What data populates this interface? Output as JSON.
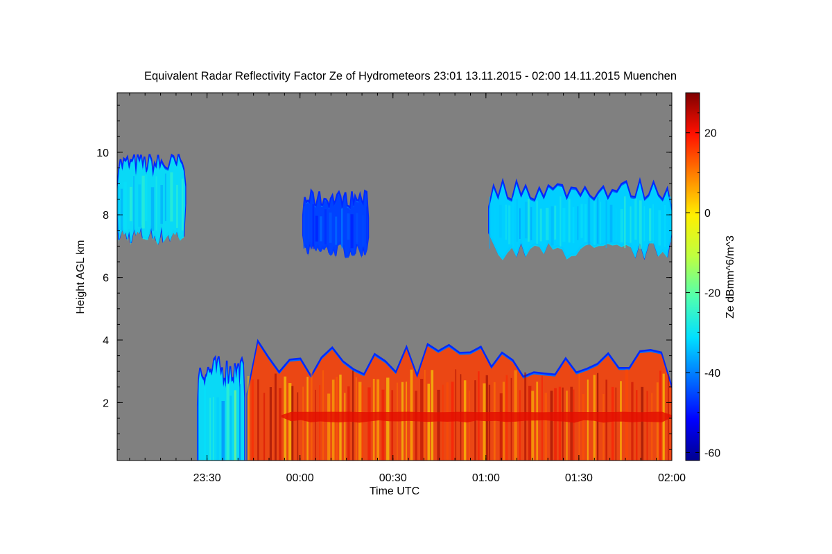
{
  "chart_data": {
    "type": "heatmap",
    "title": "Equivalent Radar Reflectivity Factor Ze of Hydrometeors   23:01 13.11.2015 - 02:00 14.11.2015 Muenchen",
    "xlabel": "Time UTC",
    "ylabel": "Height AGL km",
    "colorbar_label": "Ze dBmm^6/m^3",
    "x_range_minutes_since_2300": [
      1,
      180
    ],
    "x_ticks": [
      {
        "label": "23:30",
        "value": 30
      },
      {
        "label": "00:00",
        "value": 60
      },
      {
        "label": "00:30",
        "value": 90
      },
      {
        "label": "01:00",
        "value": 120
      },
      {
        "label": "01:30",
        "value": 150
      },
      {
        "label": "02:00",
        "value": 180
      }
    ],
    "ylim": [
      0.15,
      11.9
    ],
    "y_ticks": [
      2,
      4,
      6,
      8,
      10
    ],
    "colorbar_range": [
      -62,
      30
    ],
    "colorbar_ticks": [
      20,
      0,
      -20,
      -40,
      -60
    ],
    "colormap": [
      "#00008f",
      "#0000ff",
      "#0070ff",
      "#00dfff",
      "#50ffaf",
      "#bfff40",
      "#ffef00",
      "#ff8000",
      "#ff1000",
      "#7f0000"
    ],
    "background_no_data": "#808080",
    "features": [
      {
        "name": "cirrus-early",
        "t_start": 1,
        "t_end": 23,
        "base_km": 7.4,
        "top_km": 9.6,
        "ze_dbz": -30
      },
      {
        "name": "cirrus-mid",
        "t_start": 61,
        "t_end": 82,
        "base_km": 6.9,
        "top_km": 8.5,
        "ze_dbz": -46
      },
      {
        "name": "cirrus-late",
        "t_start": 121,
        "t_end": 180,
        "base_km": 6.9,
        "top_km": 8.8,
        "ze_dbz": -32
      },
      {
        "name": "precip-onset",
        "t_start": 27,
        "t_end": 42,
        "base_km": 0.15,
        "top_km": 3.0,
        "ze_dbz": -30
      },
      {
        "name": "precip-main",
        "t_start": 43,
        "t_end": 180,
        "base_km": 0.15,
        "top_km": 3.4,
        "ze_dbz": 15
      },
      {
        "name": "bright-band",
        "t_start": 54,
        "t_end": 180,
        "base_km": 1.4,
        "top_km": 1.7,
        "ze_dbz": 22
      }
    ]
  }
}
